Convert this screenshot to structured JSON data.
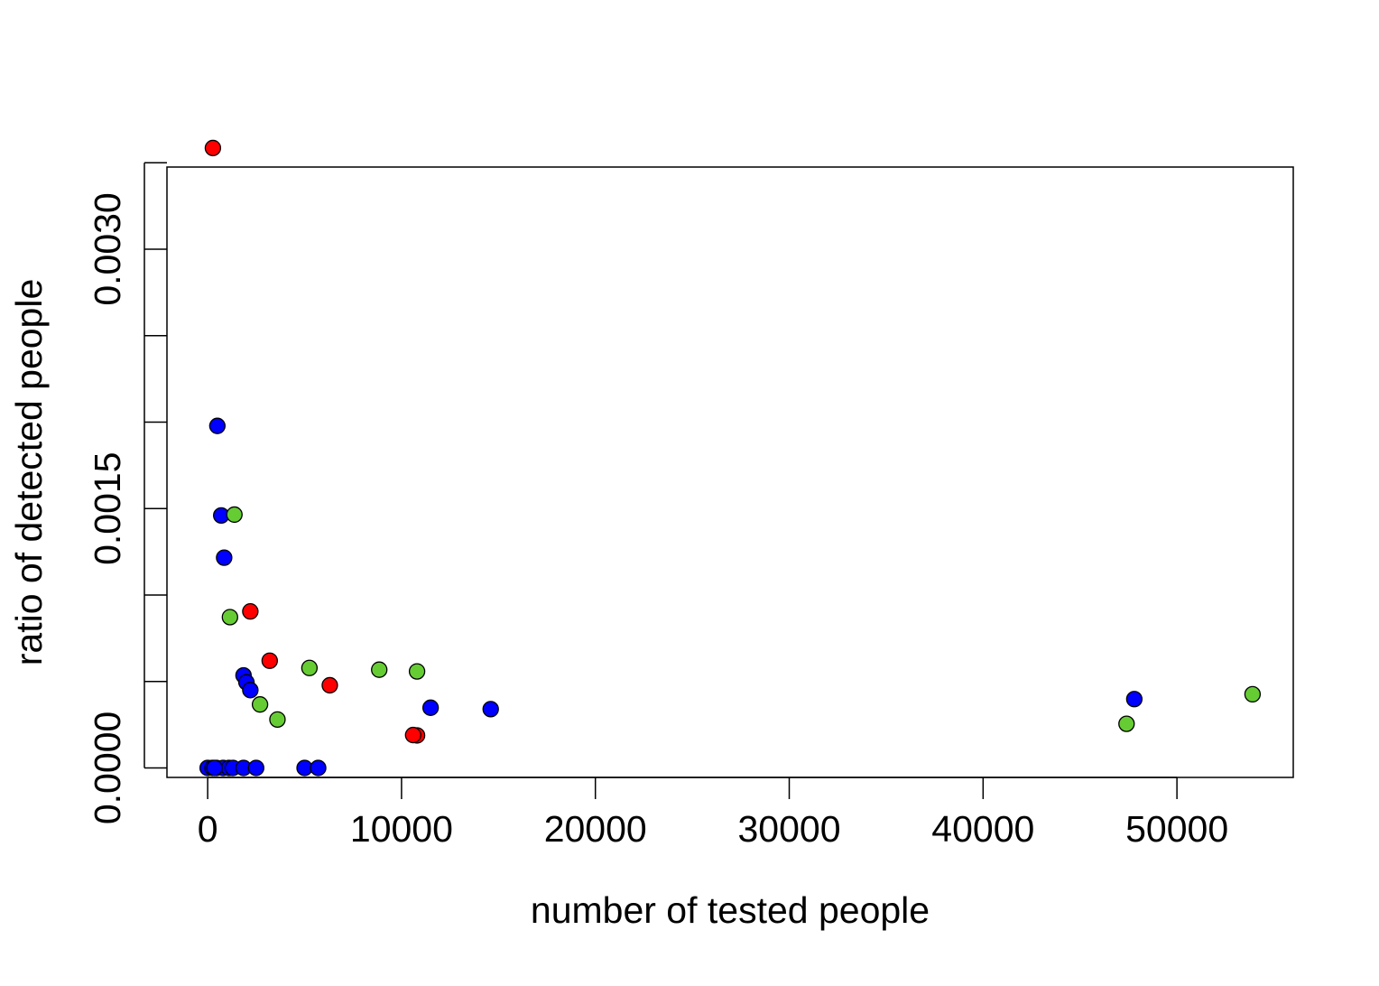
{
  "chart_data": {
    "type": "scatter",
    "title": "",
    "xlabel": "number of tested people",
    "ylabel": "ratio of detected people",
    "xlim": [
      -2100,
      56000
    ],
    "ylim": [
      -5.5e-05,
      0.003475
    ],
    "x_ticks": [
      0,
      10000,
      20000,
      30000,
      40000,
      50000
    ],
    "x_tick_labels": [
      "0",
      "10000",
      "20000",
      "30000",
      "40000",
      "50000"
    ],
    "y_ticks": [
      0,
      0.0005,
      0.001,
      0.0015,
      0.002,
      0.0025,
      0.003,
      0.0035
    ],
    "y_tick_labels": [
      "0.0000",
      "",
      "",
      "0.0015",
      "",
      "",
      "0.0030",
      ""
    ],
    "grid": false,
    "legend": "none",
    "series": [
      {
        "color": "#ff0000",
        "points": [
          {
            "x": 270,
            "y": 0.003585
          },
          {
            "x": 2200,
            "y": 0.000905
          },
          {
            "x": 3200,
            "y": 0.00062
          },
          {
            "x": 6300,
            "y": 0.000478
          },
          {
            "x": 10800,
            "y": 0.000188
          },
          {
            "x": 10600,
            "y": 0.00019
          }
        ]
      },
      {
        "color": "#0000ff",
        "points": [
          {
            "x": 500,
            "y": 0.001978
          },
          {
            "x": 700,
            "y": 0.00146
          },
          {
            "x": 850,
            "y": 0.001216
          },
          {
            "x": 1850,
            "y": 0.000535
          },
          {
            "x": 2000,
            "y": 0.000495
          },
          {
            "x": 2200,
            "y": 0.00045
          },
          {
            "x": 11500,
            "y": 0.000348
          },
          {
            "x": 14600,
            "y": 0.00034
          },
          {
            "x": 47800,
            "y": 0.000398
          },
          {
            "x": 0,
            "y": 0
          },
          {
            "x": 250,
            "y": 0
          },
          {
            "x": 450,
            "y": 0
          },
          {
            "x": 800,
            "y": 0
          },
          {
            "x": 1100,
            "y": 0
          },
          {
            "x": 1300,
            "y": 0
          },
          {
            "x": 1850,
            "y": 0
          },
          {
            "x": 2500,
            "y": 0
          },
          {
            "x": 5000,
            "y": 0
          },
          {
            "x": 5700,
            "y": 0
          },
          {
            "x": 350,
            "y": 0
          }
        ]
      },
      {
        "color": "#66cc33",
        "points": [
          {
            "x": 1380,
            "y": 0.001465
          },
          {
            "x": 1150,
            "y": 0.000872
          },
          {
            "x": 5250,
            "y": 0.000578
          },
          {
            "x": 8850,
            "y": 0.000568
          },
          {
            "x": 10800,
            "y": 0.000558
          },
          {
            "x": 2700,
            "y": 0.000367
          },
          {
            "x": 3600,
            "y": 0.00028
          },
          {
            "x": 53900,
            "y": 0.000426
          },
          {
            "x": 47400,
            "y": 0.000255
          }
        ]
      }
    ]
  }
}
